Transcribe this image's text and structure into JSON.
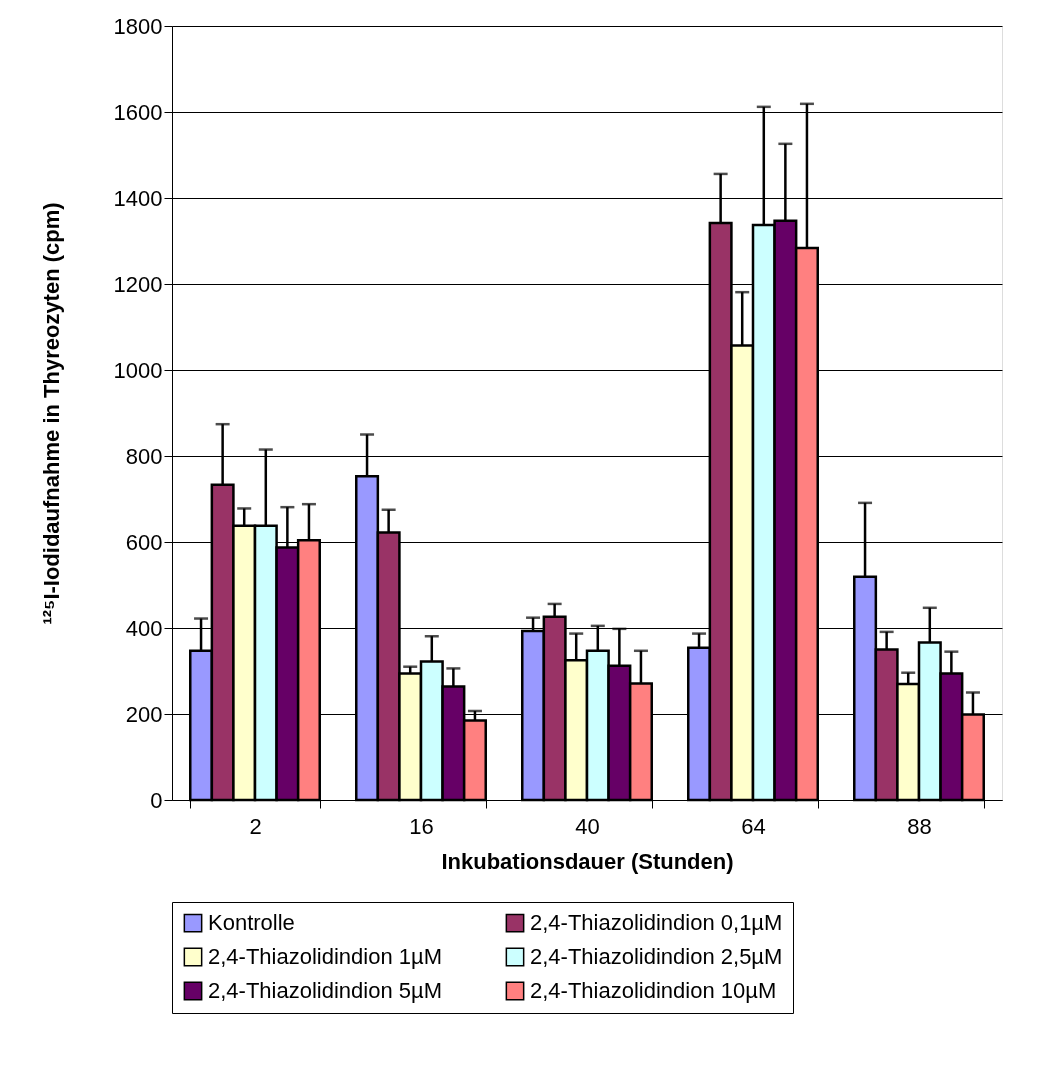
{
  "chart_data": {
    "type": "bar",
    "xlabel": "Inkubationsdauer (Stunden)",
    "ylabel": "¹²⁵I-Iodidaufnahme in Thyreozyten (cpm)",
    "categories": [
      "2",
      "16",
      "40",
      "64",
      "88"
    ],
    "ylim": [
      0,
      1800
    ],
    "yticks": [
      0,
      200,
      400,
      600,
      800,
      1000,
      1200,
      1400,
      1600,
      1800
    ],
    "grid": "y",
    "legend": "bottom",
    "series": [
      {
        "name": "Kontrolle",
        "color": "#9999ff",
        "values": [
          347,
          753,
          393,
          354,
          519
        ],
        "errors": [
          [
            347,
            422
          ],
          [
            753,
            850
          ],
          [
            393,
            424
          ],
          [
            354,
            387
          ],
          [
            519,
            691
          ]
        ]
      },
      {
        "name": "2,4-Thiazolidindion 0,1µM",
        "color": "#993366",
        "values": [
          733,
          622,
          426,
          1342,
          350
        ],
        "errors": [
          [
            733,
            874
          ],
          [
            622,
            675
          ],
          [
            426,
            456
          ],
          [
            1342,
            1456
          ],
          [
            350,
            391
          ]
        ]
      },
      {
        "name": "2,4-Thiazolidindion 1µM",
        "color": "#ffffcc",
        "values": [
          638,
          294,
          325,
          1057,
          270
        ],
        "errors": [
          [
            638,
            678
          ],
          [
            294,
            310
          ],
          [
            325,
            387
          ],
          [
            1057,
            1181
          ],
          [
            270,
            296
          ]
        ]
      },
      {
        "name": "2,4-Thiazolidindion 2,5µM",
        "color": "#ccffff",
        "values": [
          638,
          322,
          347,
          1337,
          366
        ],
        "errors": [
          [
            638,
            815
          ],
          [
            322,
            381
          ],
          [
            347,
            405
          ],
          [
            1337,
            1612
          ],
          [
            366,
            447
          ]
        ]
      },
      {
        "name": "2,4-Thiazolidindion 5µM",
        "color": "#660066",
        "values": [
          587,
          264,
          312,
          1347,
          294
        ],
        "errors": [
          [
            587,
            681
          ],
          [
            264,
            306
          ],
          [
            312,
            398
          ],
          [
            1347,
            1526
          ],
          [
            294,
            345
          ]
        ]
      },
      {
        "name": "2,4-Thiazolidindion 10µM",
        "color": "#ff8080",
        "values": [
          604,
          185,
          271,
          1284,
          199
        ],
        "errors": [
          [
            604,
            688
          ],
          [
            185,
            207
          ],
          [
            271,
            347
          ],
          [
            1284,
            1619
          ],
          [
            199,
            250
          ]
        ]
      }
    ]
  }
}
